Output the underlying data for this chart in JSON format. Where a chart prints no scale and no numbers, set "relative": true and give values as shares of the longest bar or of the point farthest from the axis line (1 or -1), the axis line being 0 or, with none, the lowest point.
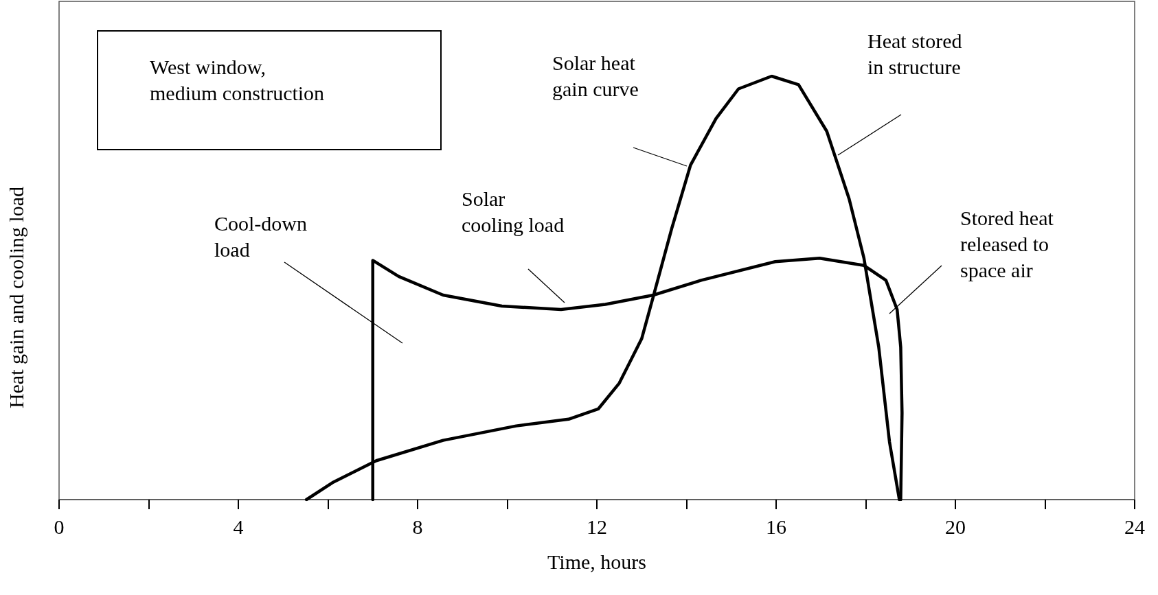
{
  "chart_data": {
    "type": "line",
    "relative": true,
    "xlabel": "Time, hours",
    "ylabel": "Heat gain and cooling load",
    "xlim": [
      0,
      24
    ],
    "xticks": [
      0,
      {
        "value": 2,
        "label": null
      },
      4,
      {
        "value": 6,
        "label": null
      },
      8,
      {
        "value": 10,
        "label": null
      },
      12,
      {
        "value": 14,
        "label": null
      },
      16,
      {
        "value": 18,
        "label": null
      },
      20,
      {
        "value": 22,
        "label": null
      },
      24
    ],
    "series": [
      {
        "color": "#000000",
        "x": [
          5.52,
          6.1,
          7.08,
          8.57,
          10.2,
          11.37,
          12.03,
          12.5,
          13.0,
          13.26,
          13.67,
          14.09,
          14.66,
          15.16,
          15.9,
          16.5,
          17.13,
          17.63,
          17.96,
          18.29,
          18.53,
          18.75
        ],
        "values": [
          0,
          0.04,
          0.092,
          0.14,
          0.174,
          0.19,
          0.214,
          0.275,
          0.38,
          0.48,
          0.64,
          0.79,
          0.9,
          0.97,
          1,
          0.98,
          0.87,
          0.71,
          0.57,
          0.36,
          0.136,
          0
        ]
      },
      {
        "color": "#000000",
        "x": [
          7,
          7,
          7.58,
          8.57,
          9.88,
          11.2,
          12.19,
          13.26,
          14.33,
          15.98,
          16.97,
          17.96,
          18.45,
          18.7,
          18.78,
          18.81,
          18.78
        ],
        "values": [
          0,
          0.565,
          0.527,
          0.483,
          0.457,
          0.449,
          0.461,
          0.483,
          0.518,
          0.562,
          0.57,
          0.553,
          0.518,
          0.449,
          0.36,
          0.205,
          0
        ]
      }
    ],
    "annotations": [
      "West window,\nmedium construction",
      "Solar heat\ngain curve",
      "Heat stored\nin structure",
      "Solar\ncooling load",
      "Cool-down\nload",
      "Stored heat\nreleased to\nspace air"
    ],
    "marker": "none",
    "line_style": "solid"
  }
}
